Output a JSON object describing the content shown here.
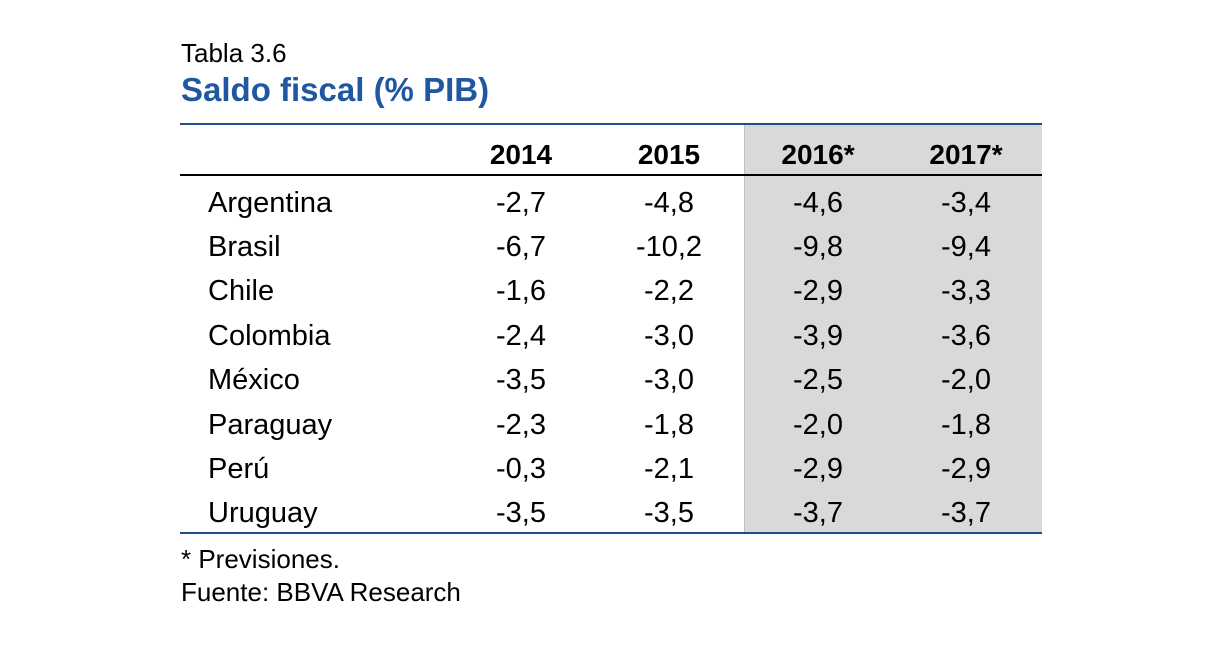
{
  "table": {
    "label": "Tabla 3.6",
    "title": "Saldo fiscal (% PIB)",
    "columns": [
      "2014",
      "2015",
      "2016*",
      "2017*"
    ],
    "rows": [
      {
        "country": "Argentina",
        "values": [
          "-2,7",
          "-4,8",
          "-4,6",
          "-3,4"
        ]
      },
      {
        "country": "Brasil",
        "values": [
          "-6,7",
          "-10,2",
          "-9,8",
          "-9,4"
        ]
      },
      {
        "country": "Chile",
        "values": [
          "-1,6",
          "-2,2",
          "-2,9",
          "-3,3"
        ]
      },
      {
        "country": "Colombia",
        "values": [
          "-2,4",
          "-3,0",
          "-3,9",
          "-3,6"
        ]
      },
      {
        "country": "México",
        "values": [
          "-3,5",
          "-3,0",
          "-2,5",
          "-2,0"
        ]
      },
      {
        "country": "Paraguay",
        "values": [
          "-2,3",
          "-1,8",
          "-2,0",
          "-1,8"
        ]
      },
      {
        "country": "Perú",
        "values": [
          "-0,3",
          "-2,1",
          "-2,9",
          "-2,9"
        ]
      },
      {
        "country": "Uruguay",
        "values": [
          "-3,5",
          "-3,5",
          "-3,7",
          "-3,7"
        ]
      }
    ]
  },
  "notes": {
    "footnote": "* Previsiones.",
    "source": "Fuente: BBVA Research"
  },
  "colors": {
    "title": "#1f57a3",
    "rule": "#1f4e8c",
    "forecast_shade": "#d9d9d9"
  }
}
